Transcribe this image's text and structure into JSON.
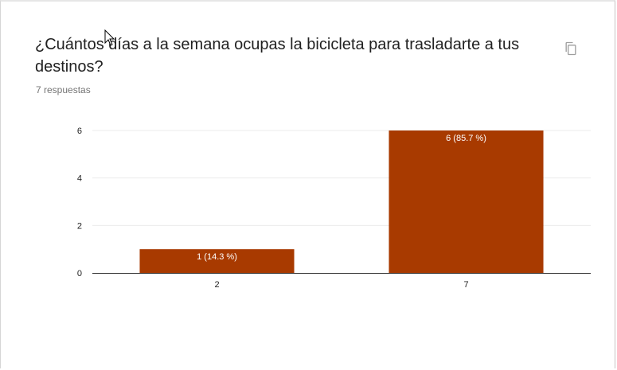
{
  "question": {
    "title": "¿Cuántos días a la semana ocupas la bicicleta para trasladarte a tus destinos?",
    "responses_label": "7 respuestas",
    "copy_icon": "copy-icon"
  },
  "colors": {
    "bar": "#a83a00",
    "axis": "#333333",
    "gridline": "#ebebeb",
    "text": "#212121",
    "muted": "#757575"
  },
  "chart_data": {
    "type": "bar",
    "categories": [
      "2",
      "7"
    ],
    "values": [
      1,
      6
    ],
    "data_labels": [
      "1 (14.3 %)",
      "6 (85.7 %)"
    ],
    "y_ticks": [
      "0",
      "2",
      "4",
      "6"
    ],
    "ylim": [
      0,
      6
    ],
    "grid": true,
    "title": "",
    "xlabel": "",
    "ylabel": ""
  }
}
